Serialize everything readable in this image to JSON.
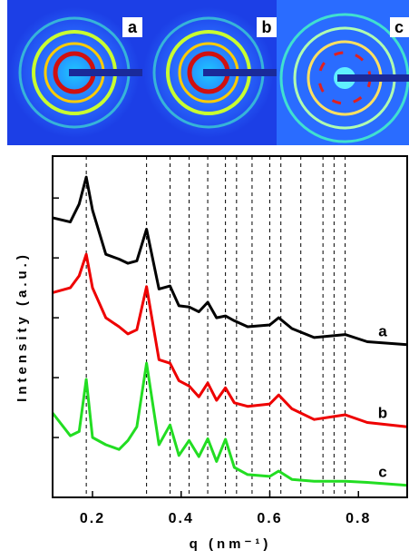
{
  "images": [
    {
      "label": "a"
    },
    {
      "label": "b"
    },
    {
      "label": "c"
    }
  ],
  "chart_data": {
    "type": "line",
    "xlabel": "q (nm⁻¹)",
    "ylabel": "Intensity (a.u.)",
    "x": [
      0.11,
      0.15,
      0.17,
      0.186,
      0.2,
      0.23,
      0.26,
      0.28,
      0.3,
      0.322,
      0.35,
      0.375,
      0.395,
      0.418,
      0.44,
      0.46,
      0.48,
      0.5,
      0.52,
      0.55,
      0.6,
      0.62,
      0.65,
      0.7,
      0.77,
      0.82,
      0.91
    ],
    "series": [
      {
        "name": "a",
        "color": "#000000",
        "values": [
          4.67,
          4.6,
          4.9,
          5.35,
          4.8,
          4.06,
          3.98,
          3.91,
          3.95,
          4.48,
          3.48,
          3.53,
          3.2,
          3.18,
          3.1,
          3.26,
          3.0,
          3.03,
          2.95,
          2.85,
          2.88,
          3.0,
          2.82,
          2.67,
          2.72,
          2.6,
          2.55
        ]
      },
      {
        "name": "b",
        "color": "#ee0000",
        "values": [
          3.42,
          3.5,
          3.7,
          4.06,
          3.5,
          3.0,
          2.85,
          2.73,
          2.8,
          3.52,
          2.3,
          2.24,
          1.95,
          1.86,
          1.68,
          1.91,
          1.62,
          1.83,
          1.58,
          1.52,
          1.56,
          1.71,
          1.48,
          1.3,
          1.38,
          1.25,
          1.18
        ]
      },
      {
        "name": "c",
        "color": "#22dd22",
        "values": [
          1.41,
          1.03,
          1.1,
          1.97,
          1.0,
          0.88,
          0.8,
          0.95,
          1.18,
          2.24,
          0.88,
          1.21,
          0.7,
          0.95,
          0.68,
          0.98,
          0.6,
          0.97,
          0.5,
          0.38,
          0.35,
          0.44,
          0.3,
          0.27,
          0.27,
          0.25,
          0.2
        ]
      }
    ],
    "reference_lines": [
      0.186,
      0.322,
      0.375,
      0.418,
      0.46,
      0.5,
      0.525,
      0.56,
      0.6,
      0.625,
      0.67,
      0.72,
      0.745,
      0.77
    ],
    "xlim": [
      0.11,
      0.91
    ],
    "xticks": [
      0.2,
      0.4,
      0.6,
      0.8
    ],
    "ylim": [
      0,
      5.7
    ],
    "yticks": [
      0,
      1,
      2,
      3,
      4,
      5
    ]
  }
}
